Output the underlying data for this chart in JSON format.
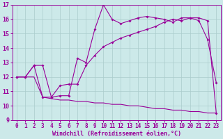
{
  "xlabel": "Windchill (Refroidissement éolien,°C)",
  "bg_color": "#cce9e9",
  "grid_color": "#aacccc",
  "line_color": "#990099",
  "xlim": [
    -0.5,
    23.5
  ],
  "ylim": [
    9,
    17
  ],
  "yticks": [
    9,
    10,
    11,
    12,
    13,
    14,
    15,
    16,
    17
  ],
  "xticks": [
    0,
    1,
    2,
    3,
    4,
    5,
    6,
    7,
    8,
    9,
    10,
    11,
    12,
    13,
    14,
    15,
    16,
    17,
    18,
    19,
    20,
    21,
    22,
    23
  ],
  "line1_x": [
    0,
    1,
    2,
    3,
    4,
    5,
    6,
    7,
    8,
    9,
    10,
    11,
    12,
    13,
    14,
    15,
    16,
    17,
    18,
    19,
    20,
    21,
    22,
    23
  ],
  "line1_y": [
    12.0,
    12.0,
    12.8,
    12.8,
    10.6,
    10.7,
    10.7,
    13.3,
    13.0,
    15.3,
    17.0,
    16.0,
    15.7,
    15.9,
    16.1,
    16.2,
    16.1,
    16.0,
    15.8,
    16.1,
    16.1,
    15.9,
    14.6,
    11.6
  ],
  "line2_x": [
    0,
    1,
    2,
    3,
    4,
    5,
    6,
    7,
    8,
    9,
    10,
    11,
    12,
    13,
    14,
    15,
    16,
    17,
    18,
    19,
    20,
    21,
    22,
    23
  ],
  "line2_y": [
    12.0,
    12.0,
    12.8,
    10.6,
    10.6,
    11.4,
    11.5,
    11.5,
    12.8,
    13.5,
    14.1,
    14.4,
    14.7,
    14.9,
    15.1,
    15.3,
    15.5,
    15.8,
    16.0,
    15.9,
    16.1,
    16.1,
    15.9,
    9.5
  ],
  "line3_x": [
    0,
    1,
    2,
    3,
    4,
    5,
    6,
    7,
    8,
    9,
    10,
    11,
    12,
    13,
    14,
    15,
    16,
    17,
    18,
    19,
    20,
    21,
    22,
    23
  ],
  "line3_y": [
    12.0,
    12.0,
    12.0,
    10.6,
    10.5,
    10.4,
    10.4,
    10.3,
    10.3,
    10.2,
    10.2,
    10.1,
    10.1,
    10.0,
    10.0,
    9.9,
    9.8,
    9.8,
    9.7,
    9.7,
    9.6,
    9.6,
    9.5,
    9.5
  ],
  "tick_fontsize": 5.5,
  "xlabel_fontsize": 6.0
}
